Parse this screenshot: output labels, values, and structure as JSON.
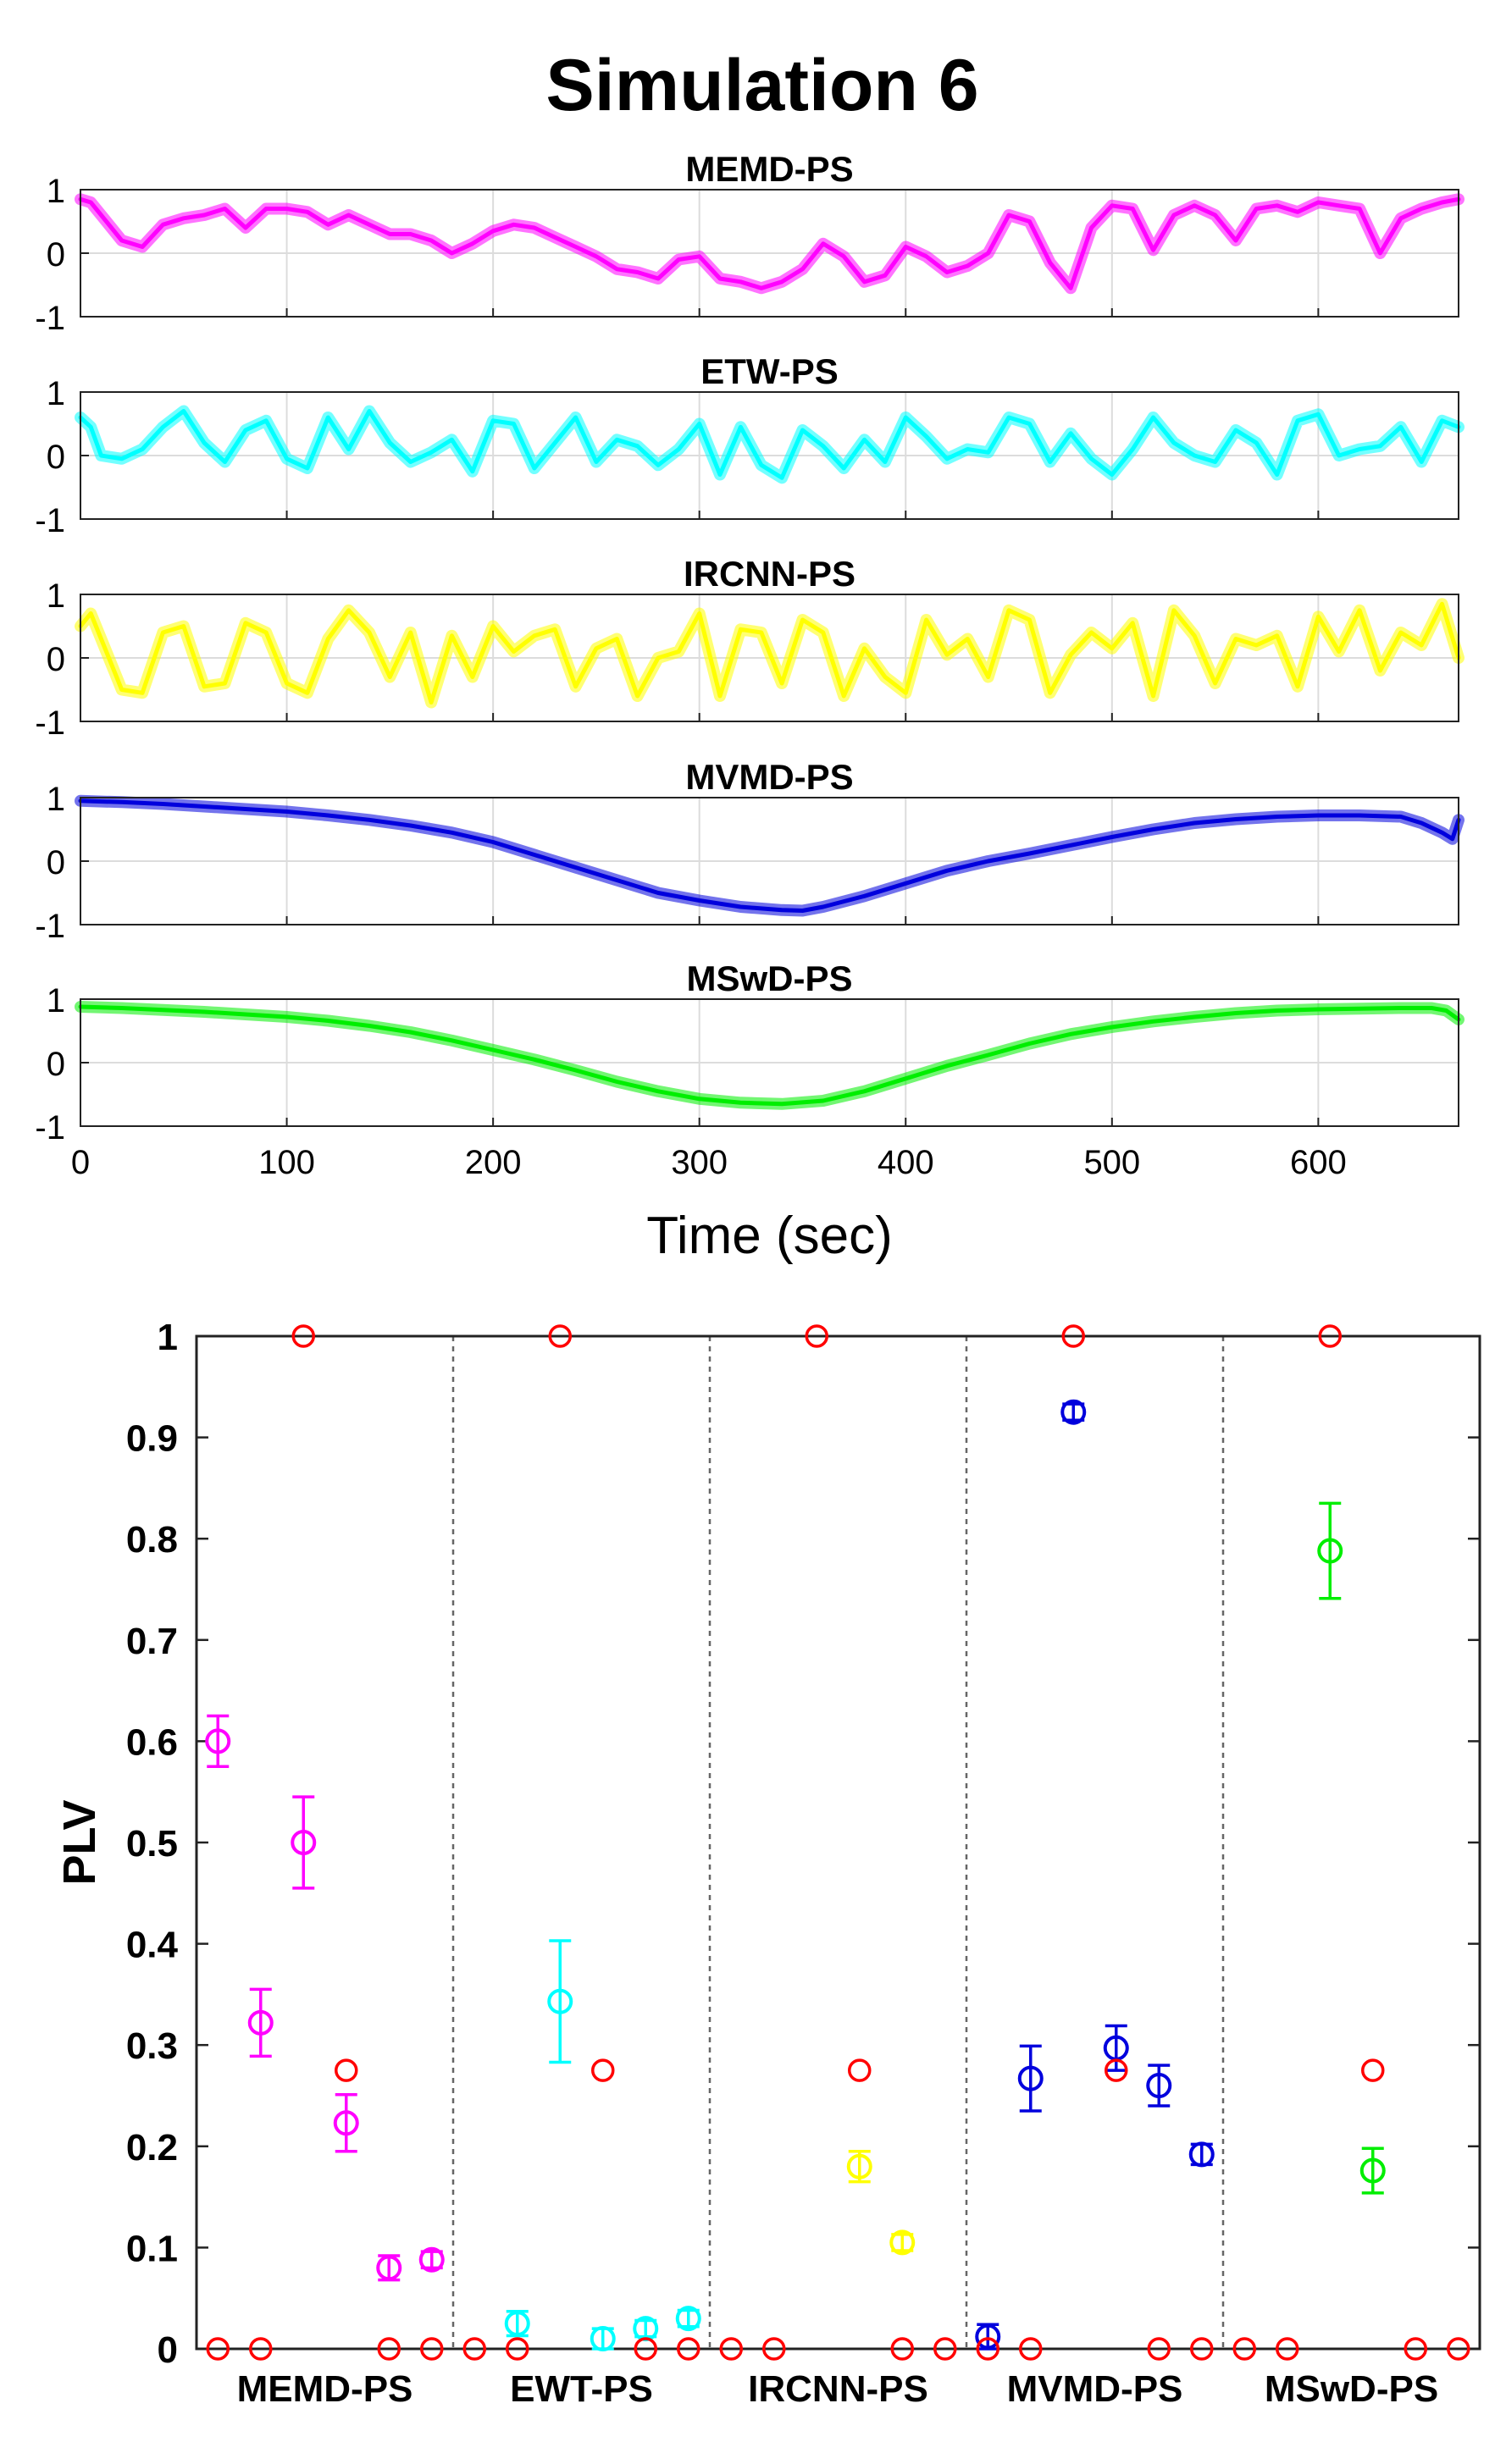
{
  "figure": {
    "title": "Simulation 6"
  },
  "chart_data": [
    {
      "type": "line",
      "panels": [
        {
          "title": "MEMD-PS",
          "color": "#ff00ff",
          "ylim": [
            -1,
            1
          ],
          "yticks": [
            "1",
            "0",
            "-1"
          ],
          "x": [
            0,
            5,
            10,
            20,
            30,
            40,
            50,
            60,
            70,
            80,
            90,
            100,
            110,
            120,
            130,
            140,
            150,
            160,
            170,
            180,
            190,
            200,
            210,
            220,
            230,
            240,
            250,
            260,
            270,
            280,
            290,
            300,
            310,
            320,
            330,
            340,
            350,
            360,
            370,
            380,
            390,
            400,
            410,
            420,
            430,
            440,
            450,
            460,
            470,
            480,
            490,
            500,
            510,
            520,
            530,
            540,
            550,
            560,
            570,
            580,
            590,
            600,
            610,
            620,
            630,
            640,
            650,
            660,
            668
          ],
          "y": [
            0.85,
            0.8,
            0.6,
            0.2,
            0.1,
            0.45,
            0.55,
            0.6,
            0.7,
            0.4,
            0.7,
            0.7,
            0.65,
            0.45,
            0.6,
            0.45,
            0.3,
            0.3,
            0.2,
            0.0,
            0.15,
            0.35,
            0.45,
            0.4,
            0.25,
            0.1,
            -0.05,
            -0.25,
            -0.3,
            -0.4,
            -0.1,
            -0.05,
            -0.4,
            -0.45,
            -0.55,
            -0.45,
            -0.25,
            0.15,
            -0.05,
            -0.45,
            -0.35,
            0.1,
            -0.05,
            -0.3,
            -0.2,
            0.0,
            0.6,
            0.5,
            -0.15,
            -0.55,
            0.4,
            0.75,
            0.7,
            0.05,
            0.6,
            0.75,
            0.6,
            0.2,
            0.7,
            0.75,
            0.65,
            0.8,
            0.75,
            0.7,
            0.0,
            0.55,
            0.7,
            0.8,
            0.85
          ]
        },
        {
          "title": "ETW-PS",
          "color": "#00ffff",
          "ylim": [
            -1,
            1
          ],
          "yticks": [
            "1",
            "0",
            "-1"
          ],
          "x": [
            0,
            5,
            10,
            20,
            30,
            40,
            50,
            60,
            70,
            80,
            90,
            100,
            110,
            120,
            130,
            140,
            150,
            160,
            170,
            180,
            190,
            200,
            210,
            220,
            230,
            240,
            250,
            260,
            270,
            280,
            290,
            300,
            310,
            320,
            330,
            340,
            350,
            360,
            370,
            380,
            390,
            400,
            410,
            420,
            430,
            440,
            450,
            460,
            470,
            480,
            490,
            500,
            510,
            520,
            530,
            540,
            550,
            560,
            570,
            580,
            590,
            600,
            610,
            620,
            630,
            640,
            650,
            660,
            668
          ],
          "y": [
            0.6,
            0.45,
            0.0,
            -0.05,
            0.1,
            0.45,
            0.7,
            0.2,
            -0.1,
            0.4,
            0.55,
            -0.05,
            -0.2,
            0.6,
            0.1,
            0.7,
            0.2,
            -0.1,
            0.05,
            0.25,
            -0.25,
            0.55,
            0.5,
            -0.2,
            0.2,
            0.6,
            -0.1,
            0.25,
            0.15,
            -0.15,
            0.1,
            0.5,
            -0.3,
            0.45,
            -0.15,
            -0.35,
            0.4,
            0.15,
            -0.2,
            0.25,
            -0.1,
            0.6,
            0.3,
            -0.05,
            0.1,
            0.05,
            0.6,
            0.5,
            -0.1,
            0.35,
            -0.05,
            -0.3,
            0.1,
            0.6,
            0.2,
            0.0,
            -0.1,
            0.4,
            0.2,
            -0.3,
            0.55,
            0.65,
            0.0,
            0.1,
            0.15,
            0.45,
            -0.1,
            0.55,
            0.45
          ]
        },
        {
          "title": "IRCNN-PS",
          "color": "#ffff00",
          "ylim": [
            -1,
            1
          ],
          "yticks": [
            "1",
            "0",
            "-1"
          ],
          "x": [
            0,
            5,
            10,
            20,
            30,
            40,
            50,
            60,
            70,
            80,
            90,
            100,
            110,
            120,
            130,
            140,
            150,
            160,
            170,
            180,
            190,
            200,
            210,
            220,
            230,
            240,
            250,
            260,
            270,
            280,
            290,
            300,
            310,
            320,
            330,
            340,
            350,
            360,
            370,
            380,
            390,
            400,
            410,
            420,
            430,
            440,
            450,
            460,
            470,
            480,
            490,
            500,
            510,
            520,
            530,
            540,
            550,
            560,
            570,
            580,
            590,
            600,
            610,
            620,
            630,
            640,
            650,
            660,
            668
          ],
          "y": [
            0.5,
            0.7,
            0.3,
            -0.5,
            -0.55,
            0.4,
            0.5,
            -0.45,
            -0.4,
            0.55,
            0.4,
            -0.4,
            -0.55,
            0.3,
            0.75,
            0.4,
            -0.3,
            0.4,
            -0.7,
            0.35,
            -0.3,
            0.5,
            0.1,
            0.35,
            0.45,
            -0.45,
            0.15,
            0.3,
            -0.6,
            0.0,
            0.1,
            0.7,
            -0.6,
            0.45,
            0.4,
            -0.4,
            0.6,
            0.4,
            -0.6,
            0.15,
            -0.3,
            -0.55,
            0.6,
            0.05,
            0.3,
            -0.3,
            0.75,
            0.6,
            -0.55,
            0.05,
            0.4,
            0.15,
            0.55,
            -0.6,
            0.75,
            0.35,
            -0.4,
            0.3,
            0.2,
            0.35,
            -0.45,
            0.65,
            0.1,
            0.75,
            -0.2,
            0.4,
            0.2,
            0.85,
            0.0
          ]
        },
        {
          "title": "MVMD-PS",
          "color": "#0000dd",
          "ylim": [
            -1,
            1
          ],
          "yticks": [
            "1",
            "0",
            "-1"
          ],
          "x": [
            0,
            20,
            40,
            60,
            80,
            100,
            120,
            140,
            160,
            180,
            200,
            220,
            240,
            260,
            280,
            300,
            320,
            340,
            350,
            360,
            380,
            400,
            420,
            440,
            460,
            480,
            500,
            520,
            540,
            560,
            580,
            600,
            620,
            640,
            650,
            660,
            665,
            668
          ],
          "y": [
            0.95,
            0.93,
            0.9,
            0.86,
            0.82,
            0.78,
            0.72,
            0.65,
            0.56,
            0.45,
            0.3,
            0.1,
            -0.1,
            -0.3,
            -0.5,
            -0.62,
            -0.72,
            -0.77,
            -0.78,
            -0.72,
            -0.55,
            -0.35,
            -0.15,
            0.0,
            0.12,
            0.25,
            0.38,
            0.5,
            0.6,
            0.66,
            0.7,
            0.72,
            0.72,
            0.7,
            0.6,
            0.45,
            0.35,
            0.65
          ]
        },
        {
          "title": "MSwD-PS",
          "color": "#00ee00",
          "ylim": [
            -1,
            1
          ],
          "yticks": [
            "1",
            "0",
            "-1"
          ],
          "x": [
            0,
            20,
            40,
            60,
            80,
            100,
            120,
            140,
            160,
            180,
            200,
            220,
            240,
            260,
            280,
            300,
            320,
            340,
            360,
            380,
            400,
            420,
            440,
            460,
            480,
            500,
            520,
            540,
            560,
            580,
            600,
            620,
            640,
            655,
            662,
            668
          ],
          "y": [
            0.88,
            0.86,
            0.83,
            0.8,
            0.76,
            0.72,
            0.66,
            0.58,
            0.48,
            0.35,
            0.2,
            0.05,
            -0.12,
            -0.3,
            -0.45,
            -0.57,
            -0.63,
            -0.65,
            -0.6,
            -0.45,
            -0.25,
            -0.05,
            0.12,
            0.3,
            0.45,
            0.56,
            0.65,
            0.72,
            0.78,
            0.82,
            0.84,
            0.85,
            0.86,
            0.86,
            0.82,
            0.68
          ]
        }
      ],
      "xlim": [
        0,
        668
      ],
      "xticks": [
        "0",
        "100",
        "200",
        "300",
        "400",
        "500",
        "600"
      ],
      "xlabel": "Time (sec)",
      "grid": true
    },
    {
      "type": "scatter",
      "ylabel": "PLV",
      "ylim": [
        0,
        1
      ],
      "yticks": [
        "0",
        "0.1",
        "0.2",
        "0.3",
        "0.4",
        "0.5",
        "0.6",
        "0.7",
        "0.8",
        "0.9",
        "1"
      ],
      "categories": [
        "MEMD-PS",
        "EWT-PS",
        "IRCNN-PS",
        "MVMD-PS",
        "MSwD-PS"
      ],
      "positions_per_group": 6,
      "reference": {
        "color": "#ff0000",
        "values": [
          [
            0,
            0,
            1,
            0.275,
            0,
            0
          ],
          [
            0,
            0,
            1,
            0.275,
            0,
            0
          ],
          [
            0,
            0,
            1,
            0.275,
            0,
            0
          ],
          [
            0,
            0,
            1,
            0.275,
            0,
            0
          ],
          [
            0,
            0,
            1,
            0.275,
            0,
            0
          ]
        ]
      },
      "series": [
        {
          "group": "MEMD-PS",
          "color": "#ff00ff",
          "points": [
            [
              0,
              0.6,
              0.025
            ],
            [
              1,
              0.322,
              0.033
            ],
            [
              2,
              0.5,
              0.045
            ],
            [
              3,
              0.223,
              0.028
            ],
            [
              4,
              0.08,
              0.012
            ],
            [
              5,
              0.088,
              0.008
            ]
          ]
        },
        {
          "group": "EWT-PS",
          "color": "#00ffff",
          "points": [
            [
              1,
              0.025,
              0.012
            ],
            [
              2,
              0.343,
              0.06
            ],
            [
              3,
              0.01,
              0.01
            ],
            [
              4,
              0.02,
              0.008
            ],
            [
              5,
              0.03,
              0.008
            ]
          ]
        },
        {
          "group": "IRCNN-PS",
          "color": "#ffff00",
          "points": [
            [
              3,
              0.18,
              0.015
            ],
            [
              4,
              0.105,
              0.008
            ]
          ]
        },
        {
          "group": "MVMD-PS",
          "color": "#0000dd",
          "points": [
            [
              0,
              0.012,
              0.012
            ],
            [
              1,
              0.267,
              0.032
            ],
            [
              2,
              0.925,
              0.008
            ],
            [
              3,
              0.297,
              0.022
            ],
            [
              4,
              0.26,
              0.02
            ],
            [
              5,
              0.192,
              0.01
            ]
          ]
        },
        {
          "group": "MSwD-PS",
          "color": "#00ee00",
          "points": [
            [
              2,
              0.788,
              0.047
            ],
            [
              3,
              0.176,
              0.022
            ]
          ]
        }
      ]
    }
  ]
}
